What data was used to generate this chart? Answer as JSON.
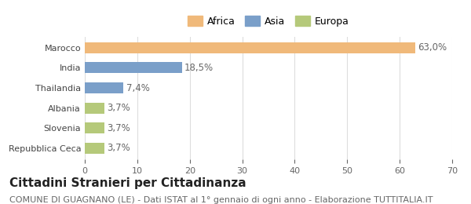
{
  "categories": [
    "Repubblica Ceca",
    "Slovenia",
    "Albania",
    "Thailandia",
    "India",
    "Marocco"
  ],
  "values": [
    3.7,
    3.7,
    3.7,
    7.4,
    18.5,
    63.0
  ],
  "bar_colors": [
    "#b5c97a",
    "#b5c97a",
    "#b5c97a",
    "#7a9fc9",
    "#7a9fc9",
    "#f0b97a"
  ],
  "labels": [
    "3,7%",
    "3,7%",
    "3,7%",
    "7,4%",
    "18,5%",
    "63,0%"
  ],
  "legend": [
    {
      "label": "Africa",
      "color": "#f0b97a"
    },
    {
      "label": "Asia",
      "color": "#7a9fc9"
    },
    {
      "label": "Europa",
      "color": "#b5c97a"
    }
  ],
  "xlim": [
    0,
    70
  ],
  "xticks": [
    0,
    10,
    20,
    30,
    40,
    50,
    60,
    70
  ],
  "title": "Cittadini Stranieri per Cittadinanza",
  "subtitle": "COMUNE DI GUAGNANO (LE) - Dati ISTAT al 1° gennaio di ogni anno - Elaborazione TUTTITALIA.IT",
  "background_color": "#ffffff",
  "bar_height": 0.55,
  "label_fontsize": 8.5,
  "title_fontsize": 11,
  "subtitle_fontsize": 8
}
